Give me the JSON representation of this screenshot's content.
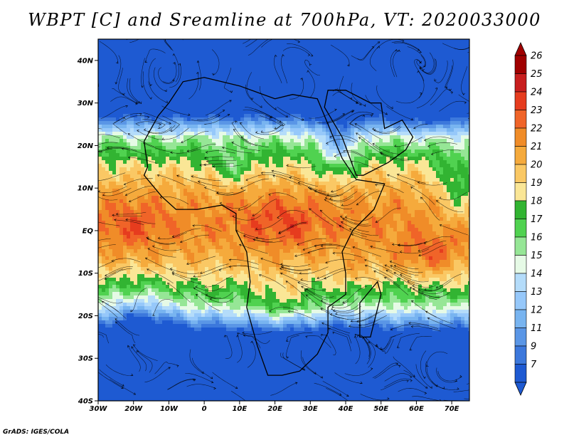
{
  "title": "WBPT [C] and Sreamline at 700hPa, VT: 2020033000",
  "credit": "GrADS: IGES/COLA",
  "map": {
    "lon_range": [
      -30,
      75
    ],
    "lat_range": [
      -40,
      45
    ],
    "lon_ticks": [
      {
        "v": -30,
        "label": "30W"
      },
      {
        "v": -20,
        "label": "20W"
      },
      {
        "v": -10,
        "label": "10W"
      },
      {
        "v": 0,
        "label": "0"
      },
      {
        "v": 10,
        "label": "10E"
      },
      {
        "v": 20,
        "label": "20E"
      },
      {
        "v": 30,
        "label": "30E"
      },
      {
        "v": 40,
        "label": "40E"
      },
      {
        "v": 50,
        "label": "50E"
      },
      {
        "v": 60,
        "label": "60E"
      },
      {
        "v": 70,
        "label": "70E"
      }
    ],
    "lat_ticks": [
      {
        "v": 40,
        "label": "40N"
      },
      {
        "v": 30,
        "label": "30N"
      },
      {
        "v": 20,
        "label": "20N"
      },
      {
        "v": 10,
        "label": "10N"
      },
      {
        "v": 0,
        "label": "EQ"
      },
      {
        "v": -10,
        "label": "10S"
      },
      {
        "v": -20,
        "label": "20S"
      },
      {
        "v": -30,
        "label": "30S"
      },
      {
        "v": -40,
        "label": "40S"
      }
    ]
  },
  "colorbar": {
    "labels": [
      "26",
      "25",
      "24",
      "23",
      "22",
      "21",
      "20",
      "19",
      "18",
      "17",
      "16",
      "15",
      "14",
      "13",
      "12",
      "11",
      "9",
      "7"
    ],
    "colors": [
      "#a00000",
      "#c81e1e",
      "#e63c1e",
      "#f06428",
      "#f08c28",
      "#f5aa3c",
      "#fac864",
      "#fae696",
      "#32b432",
      "#50d250",
      "#96e696",
      "#e6fae6",
      "#b4dcfa",
      "#96c8fa",
      "#78b4f0",
      "#5a96e6",
      "#3c78dc",
      "#1e5ad2"
    ]
  }
}
